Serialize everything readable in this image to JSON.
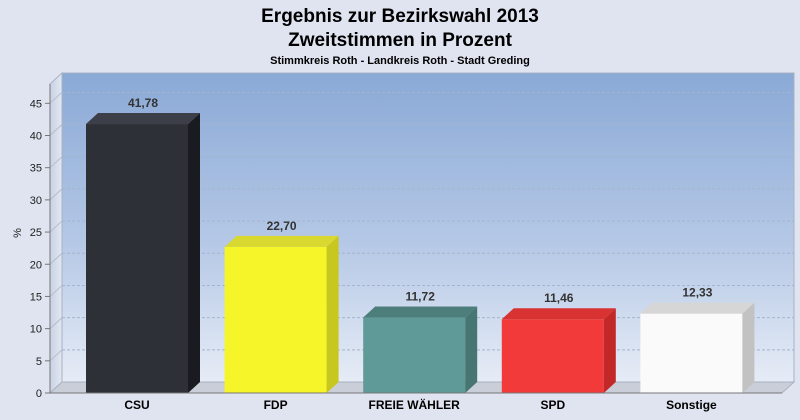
{
  "chart_data": {
    "type": "bar",
    "title": "Ergebnis zur Bezirkswahl 2013",
    "title2": "Zweitstimmen in Prozent",
    "subtitle": "Stimmkreis Roth - Landkreis Roth - Stadt Greding",
    "ylabel": "%",
    "ylim": [
      0,
      48
    ],
    "yticks": [
      0,
      5,
      10,
      15,
      20,
      25,
      30,
      35,
      40,
      45
    ],
    "grid": true,
    "categories": [
      "CSU",
      "FDP",
      "FREIE WÄHLER",
      "SPD",
      "Sonstige"
    ],
    "values": [
      41.78,
      22.7,
      11.72,
      11.46,
      12.33
    ],
    "value_labels": [
      "41,78",
      "22,70",
      "11,72",
      "11,46",
      "12,33"
    ],
    "colors": [
      "#2e3038",
      "#f5f52a",
      "#5f9a98",
      "#f23a3a",
      "#fafafa"
    ],
    "side_colors": [
      "#1a1b20",
      "#c7c71e",
      "#467572",
      "#c22828",
      "#c2c2c2"
    ],
    "top_colors": [
      "#3d3f48",
      "#d8d830",
      "#4d7e7c",
      "#d83232",
      "#d6d6d6"
    ]
  }
}
